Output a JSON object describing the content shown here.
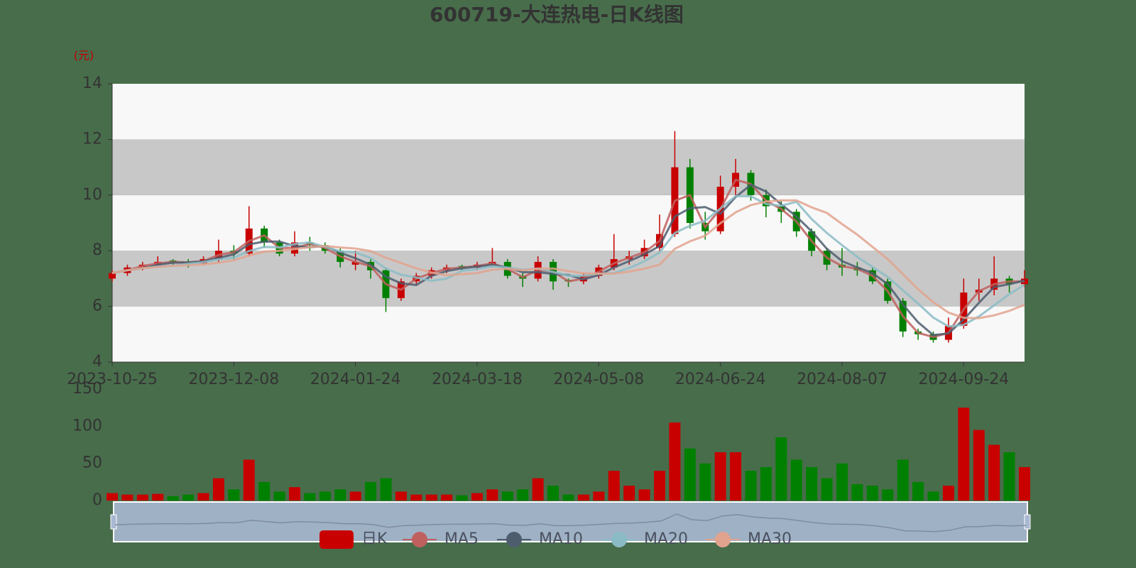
{
  "chart_data": [
    {
      "type": "candlestick",
      "title": "600719-大连热电-日K线图",
      "y_unit": "(元)",
      "name": "日K",
      "up_color": "#c80000",
      "down_color": "#008000",
      "bands": true,
      "categories": [
        "2023-10-25",
        null,
        null,
        null,
        null,
        null,
        null,
        null,
        "2023-12-08",
        null,
        null,
        null,
        null,
        null,
        null,
        null,
        "2024-01-24",
        null,
        null,
        null,
        null,
        null,
        null,
        null,
        "2024-03-18",
        null,
        null,
        null,
        null,
        null,
        null,
        null,
        "2024-05-08",
        null,
        null,
        null,
        null,
        null,
        null,
        null,
        "2024-06-24",
        null,
        null,
        null,
        null,
        null,
        null,
        null,
        "2024-08-07",
        null,
        null,
        null,
        null,
        null,
        null,
        null,
        "2024-09-24",
        null,
        null,
        null,
        null
      ],
      "open": [
        7.0,
        7.2,
        7.4,
        7.5,
        7.65,
        7.6,
        7.55,
        7.7,
        8.0,
        7.9,
        8.8,
        8.3,
        7.9,
        8.3,
        8.2,
        8.0,
        7.5,
        7.6,
        7.3,
        6.3,
        6.9,
        7.1,
        7.3,
        7.45,
        7.4,
        7.5,
        7.6,
        7.1,
        7.0,
        7.6,
        6.95,
        6.9,
        7.1,
        7.4,
        7.7,
        7.8,
        8.1,
        8.6,
        11.0,
        9.0,
        8.7,
        10.3,
        10.8,
        10.0,
        9.6,
        9.4,
        8.7,
        8.0,
        7.5,
        7.4,
        7.3,
        6.9,
        6.2,
        5.1,
        5.0,
        4.8,
        5.3,
        6.5,
        6.6,
        7.0,
        6.8
      ],
      "close": [
        7.2,
        7.4,
        7.5,
        7.6,
        7.6,
        7.55,
        7.7,
        8.0,
        7.9,
        8.8,
        8.3,
        7.9,
        8.3,
        8.2,
        8.0,
        7.6,
        7.6,
        7.3,
        6.3,
        6.9,
        7.1,
        7.3,
        7.4,
        7.4,
        7.5,
        7.6,
        7.1,
        7.0,
        7.6,
        6.9,
        6.9,
        7.1,
        7.4,
        7.7,
        7.8,
        8.1,
        8.6,
        11.0,
        9.0,
        8.7,
        10.3,
        10.8,
        10.0,
        9.6,
        9.4,
        8.7,
        8.0,
        7.5,
        7.4,
        7.3,
        6.9,
        6.2,
        5.1,
        5.0,
        4.8,
        5.3,
        6.5,
        6.6,
        7.0,
        6.8,
        7.0
      ],
      "low": [
        6.9,
        7.1,
        7.3,
        7.4,
        7.5,
        7.4,
        7.5,
        7.6,
        7.7,
        7.8,
        8.1,
        7.8,
        7.8,
        8.0,
        7.9,
        7.4,
        7.3,
        7.0,
        5.8,
        6.2,
        6.8,
        7.0,
        7.2,
        7.3,
        7.3,
        7.4,
        7.0,
        6.7,
        6.9,
        6.6,
        6.7,
        6.8,
        7.0,
        7.3,
        7.5,
        7.7,
        8.0,
        8.5,
        8.8,
        8.4,
        8.6,
        10.0,
        9.8,
        9.2,
        9.0,
        8.5,
        7.8,
        7.3,
        7.1,
        7.1,
        6.8,
        6.1,
        4.9,
        4.8,
        4.7,
        4.7,
        5.2,
        6.2,
        6.4,
        6.5,
        6.7
      ],
      "high": [
        7.3,
        7.5,
        7.6,
        7.8,
        7.7,
        7.7,
        7.8,
        8.4,
        8.2,
        9.6,
        8.9,
        8.4,
        8.7,
        8.5,
        8.3,
        8.1,
        8.0,
        7.7,
        7.4,
        7.0,
        7.2,
        7.4,
        7.5,
        7.5,
        7.6,
        8.1,
        7.7,
        7.2,
        7.8,
        7.7,
        7.0,
        7.2,
        7.5,
        8.6,
        8.0,
        8.4,
        9.3,
        12.3,
        11.3,
        9.4,
        10.7,
        11.3,
        10.9,
        10.2,
        9.8,
        9.5,
        8.8,
        8.1,
        8.1,
        7.6,
        7.4,
        7.0,
        6.3,
        5.2,
        5.1,
        5.6,
        7.0,
        7.0,
        7.8,
        7.1,
        7.3
      ],
      "series": [
        {
          "name": "MA5",
          "color": "#c0605e",
          "values": [
            7.2,
            7.3,
            7.45,
            7.55,
            7.6,
            7.58,
            7.63,
            7.85,
            7.95,
            8.35,
            8.55,
            8.1,
            8.1,
            8.25,
            8.1,
            7.8,
            7.6,
            7.45,
            6.8,
            6.6,
            7.0,
            7.2,
            7.35,
            7.4,
            7.45,
            7.55,
            7.35,
            7.05,
            7.3,
            7.25,
            6.9,
            7.0,
            7.25,
            7.55,
            7.75,
            7.95,
            8.35,
            9.8,
            10.0,
            8.85,
            9.5,
            10.55,
            10.4,
            9.8,
            9.5,
            9.05,
            8.35,
            7.75,
            7.45,
            7.35,
            7.1,
            6.55,
            5.65,
            5.05,
            4.9,
            5.05,
            5.9,
            6.55,
            6.8,
            6.9,
            6.9
          ]
        },
        {
          "name": "MA10",
          "color": "#4e5d6e",
          "values": [
            7.2,
            7.3,
            7.37,
            7.5,
            7.57,
            7.58,
            7.62,
            7.75,
            7.87,
            8.23,
            8.33,
            8.33,
            8.17,
            8.13,
            8.17,
            7.93,
            7.73,
            7.5,
            7.07,
            6.83,
            6.77,
            7.1,
            7.27,
            7.37,
            7.43,
            7.5,
            7.4,
            7.23,
            7.23,
            7.17,
            7.13,
            6.97,
            7.13,
            7.4,
            7.63,
            7.87,
            8.17,
            9.23,
            9.53,
            9.57,
            9.33,
            9.93,
            10.37,
            10.13,
            9.67,
            9.23,
            8.7,
            8.07,
            7.63,
            7.4,
            7.2,
            6.8,
            6.07,
            5.43,
            4.97,
            5.03,
            5.53,
            6.13,
            6.7,
            6.8,
            6.93
          ]
        },
        {
          "name": "MA20",
          "color": "#8bbcc6",
          "values": [
            7.2,
            7.3,
            7.37,
            7.43,
            7.46,
            7.53,
            7.59,
            7.69,
            7.75,
            7.99,
            8.14,
            8.12,
            8.24,
            8.3,
            8.14,
            7.98,
            7.94,
            7.74,
            7.36,
            7.14,
            7.04,
            6.92,
            7.0,
            7.28,
            7.34,
            7.44,
            7.4,
            7.32,
            7.36,
            7.24,
            7.1,
            7.1,
            7.18,
            7.2,
            7.38,
            7.62,
            7.94,
            8.64,
            8.9,
            9.08,
            9.52,
            9.96,
            9.96,
            9.68,
            9.62,
            9.76,
            9.14,
            8.64,
            8.2,
            7.78,
            7.42,
            7.06,
            6.58,
            6.1,
            5.6,
            5.28,
            5.34,
            5.64,
            6.04,
            6.44,
            6.78
          ]
        },
        {
          "name": "MA30",
          "color": "#e2a38e",
          "values": [
            7.2,
            7.3,
            7.37,
            7.42,
            7.46,
            7.48,
            7.51,
            7.57,
            7.66,
            7.83,
            7.97,
            8.0,
            8.06,
            8.13,
            8.17,
            8.12,
            8.08,
            7.99,
            7.75,
            7.56,
            7.37,
            7.22,
            7.12,
            7.16,
            7.2,
            7.32,
            7.35,
            7.3,
            7.36,
            7.36,
            7.27,
            7.19,
            7.18,
            7.18,
            7.25,
            7.36,
            7.5,
            8.07,
            8.34,
            8.54,
            8.99,
            9.38,
            9.64,
            9.77,
            9.81,
            9.81,
            9.56,
            9.36,
            8.96,
            8.58,
            8.14,
            7.7,
            7.16,
            6.62,
            6.15,
            5.78,
            5.59,
            5.58,
            5.68,
            5.84,
            6.06
          ]
        }
      ],
      "ylim": [
        4,
        14
      ],
      "yticks": [
        4,
        6,
        8,
        10,
        12,
        14
      ]
    },
    {
      "type": "bar",
      "values": [
        10,
        8,
        8,
        9,
        6,
        8,
        10,
        30,
        15,
        55,
        25,
        12,
        18,
        10,
        12,
        15,
        12,
        25,
        30,
        12,
        8,
        8,
        8,
        7,
        10,
        15,
        12,
        15,
        30,
        20,
        8,
        8,
        12,
        40,
        20,
        15,
        40,
        105,
        70,
        50,
        65,
        65,
        40,
        45,
        85,
        55,
        45,
        30,
        50,
        22,
        20,
        15,
        55,
        25,
        12,
        20,
        125,
        95,
        75,
        65,
        45
      ],
      "ylim": [
        0,
        150
      ],
      "yticks": [
        0,
        50,
        100,
        150
      ]
    }
  ]
}
